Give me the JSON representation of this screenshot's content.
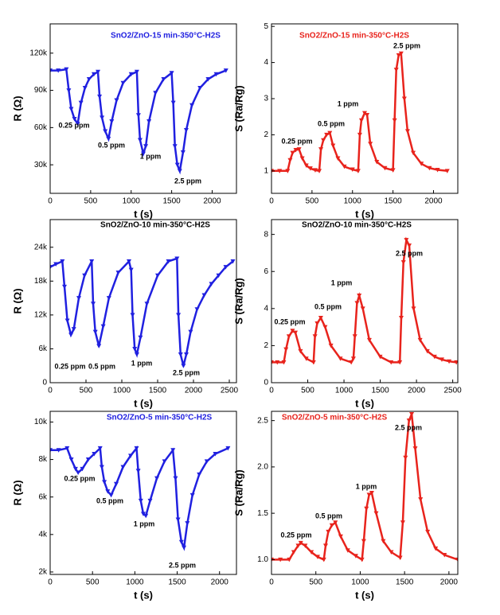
{
  "chart_data": [
    {
      "type": "line",
      "title": "SnO2/ZnO-15 min-350°C-H2S",
      "title_color": "#2020e0",
      "color": "#2020e0",
      "x_label": "t (s)",
      "y_label": "R (Ω)",
      "x": [
        0,
        100,
        200,
        230,
        260,
        300,
        340,
        380,
        430,
        480,
        540,
        590,
        610,
        640,
        680,
        720,
        760,
        820,
        900,
        1000,
        1070,
        1090,
        1110,
        1150,
        1180,
        1220,
        1300,
        1400,
        1500,
        1520,
        1540,
        1570,
        1600,
        1640,
        1680,
        1750,
        1850,
        1950,
        2050,
        2170
      ],
      "values": [
        106000,
        106000,
        107000,
        90000,
        75000,
        67000,
        63000,
        80000,
        92000,
        99000,
        103000,
        105000,
        85000,
        68000,
        57000,
        51000,
        65000,
        82000,
        96000,
        103000,
        105000,
        70000,
        50000,
        39000,
        45000,
        65000,
        88000,
        99000,
        104000,
        80000,
        45000,
        30000,
        25000,
        40000,
        58000,
        78000,
        92000,
        99000,
        103000,
        106000
      ],
      "xlim": [
        0,
        2300
      ],
      "xticks": [
        0,
        500,
        1000,
        1500,
        2000
      ],
      "ylim": [
        7000,
        143600
      ],
      "yticks": [
        {
          "value": 30000,
          "label": "30k"
        },
        {
          "value": 60000,
          "label": "60k"
        },
        {
          "value": 90000,
          "label": "90k"
        },
        {
          "value": 120000,
          "label": "120k"
        }
      ],
      "annotations": [
        "0.25 ppm",
        "0.5 ppm",
        "1 ppm",
        "2.5 ppm"
      ]
    },
    {
      "type": "line",
      "title": "SnO2/ZnO-15 min-350°C-H2S",
      "title_color": "#e8231c",
      "color": "#e8231c",
      "x_label": "t (s)",
      "y_label": "S (Ra/Rg)",
      "x": [
        0,
        100,
        200,
        230,
        260,
        300,
        340,
        380,
        430,
        480,
        540,
        590,
        610,
        640,
        680,
        720,
        760,
        820,
        900,
        1000,
        1070,
        1090,
        1110,
        1150,
        1180,
        1220,
        1300,
        1400,
        1500,
        1520,
        1540,
        1570,
        1600,
        1640,
        1680,
        1750,
        1850,
        1950,
        2050,
        2170
      ],
      "values": [
        1,
        1,
        1,
        1.3,
        1.5,
        1.58,
        1.6,
        1.35,
        1.15,
        1.07,
        1.02,
        1,
        1.6,
        1.85,
        2,
        2.05,
        1.7,
        1.35,
        1.12,
        1.04,
        1,
        2,
        2.4,
        2.6,
        2.55,
        1.75,
        1.25,
        1.08,
        1.02,
        2.4,
        3.8,
        4.2,
        4.25,
        3,
        2.1,
        1.5,
        1.2,
        1.08,
        1.03,
        1
      ],
      "xlim": [
        0,
        2300
      ],
      "xticks": [
        0,
        500,
        1000,
        1500,
        2000
      ],
      "ylim": [
        0.38,
        5.07
      ],
      "yticks": [
        1,
        2,
        3,
        4,
        5
      ],
      "annotations": [
        "0.25 ppm",
        "0.5 ppm",
        "1 ppm",
        "2.5 ppm"
      ]
    },
    {
      "type": "line",
      "title": "SnO2/ZnO-10 min-350°C-H2S",
      "title_color": "#000000",
      "color": "#2020e0",
      "x_label": "t (s)",
      "y_label": "R (Ω)",
      "x": [
        0,
        80,
        170,
        200,
        240,
        290,
        330,
        400,
        480,
        580,
        600,
        630,
        680,
        740,
        820,
        950,
        1100,
        1130,
        1150,
        1180,
        1210,
        1260,
        1350,
        1500,
        1650,
        1770,
        1790,
        1820,
        1860,
        1900,
        1960,
        2050,
        2150,
        2250,
        2350,
        2450,
        2550
      ],
      "values": [
        20500,
        21000,
        21500,
        17000,
        11000,
        8500,
        9500,
        15000,
        19000,
        21500,
        14000,
        9000,
        6500,
        10000,
        15000,
        19500,
        21500,
        20000,
        12000,
        6000,
        5000,
        8000,
        14000,
        19000,
        21500,
        22000,
        12000,
        5000,
        3000,
        5000,
        9000,
        13000,
        15500,
        17500,
        19000,
        20500,
        21500
      ],
      "xlim": [
        0,
        2600
      ],
      "xticks": [
        0,
        500,
        1000,
        1500,
        2000,
        2500
      ],
      "ylim": [
        0,
        28900
      ],
      "yticks": [
        0,
        {
          "value": 6000,
          "label": "6k"
        },
        {
          "value": 12000,
          "label": "12k"
        },
        {
          "value": 18000,
          "label": "18k"
        },
        {
          "value": 24000,
          "label": "24k"
        }
      ],
      "annotations": [
        "0.25 ppm",
        "0.5 ppm",
        "1 ppm",
        "2.5 ppm"
      ]
    },
    {
      "type": "line",
      "title": "SnO2/ZnO-10 min-350°C-H2S",
      "title_color": "#000000",
      "color": "#e8231c",
      "x_label": "t (s)",
      "y_label": "S (Ra/Rg)",
      "x": [
        0,
        80,
        170,
        200,
        240,
        290,
        330,
        400,
        480,
        580,
        600,
        630,
        680,
        740,
        820,
        950,
        1100,
        1130,
        1150,
        1180,
        1210,
        1260,
        1350,
        1500,
        1650,
        1770,
        1790,
        1820,
        1860,
        1900,
        1960,
        2050,
        2150,
        2250,
        2350,
        2450,
        2550
      ],
      "values": [
        1.1,
        1.1,
        1.1,
        1.8,
        2.5,
        2.8,
        2.7,
        1.7,
        1.3,
        1.1,
        2.5,
        3.2,
        3.5,
        3,
        2,
        1.3,
        1.1,
        1.3,
        2.5,
        4.3,
        4.7,
        4,
        2.3,
        1.4,
        1.1,
        1.1,
        3.5,
        6.5,
        7.7,
        7.4,
        4,
        2.3,
        1.7,
        1.4,
        1.25,
        1.15,
        1.1
      ],
      "xlim": [
        0,
        2570
      ],
      "xticks": [
        0,
        500,
        1000,
        1500,
        2000,
        2500
      ],
      "ylim": [
        0,
        8.8
      ],
      "yticks": [
        0,
        2,
        4,
        6,
        8
      ],
      "annotations": [
        "0.25 ppm",
        "0.5 ppm",
        "1 ppm",
        "2.5 ppm"
      ]
    },
    {
      "type": "line",
      "title": "SnO2/ZnO-5 min-350°C-H2S",
      "title_color": "#2020e0",
      "color": "#2020e0",
      "x_label": "t (s)",
      "y_label": "R (Ω)",
      "x": [
        0,
        100,
        200,
        250,
        300,
        330,
        380,
        450,
        520,
        590,
        610,
        640,
        680,
        720,
        780,
        860,
        950,
        1020,
        1040,
        1070,
        1100,
        1130,
        1180,
        1260,
        1350,
        1450,
        1480,
        1510,
        1550,
        1580,
        1620,
        1680,
        1760,
        1850,
        1950,
        2100
      ],
      "values": [
        8500,
        8500,
        8600,
        8000,
        7500,
        7300,
        7500,
        8000,
        8300,
        8600,
        7600,
        6800,
        6300,
        6100,
        6700,
        7600,
        8200,
        8600,
        7400,
        5800,
        5100,
        5000,
        5800,
        7000,
        7900,
        8500,
        7000,
        4800,
        3600,
        3300,
        4600,
        6100,
        7200,
        7900,
        8300,
        8600
      ],
      "xlim": [
        0,
        2200
      ],
      "xticks": [
        0,
        500,
        1000,
        1500,
        2000
      ],
      "ylim": [
        1870,
        10570
      ],
      "yticks": [
        {
          "value": 2000,
          "label": "2k"
        },
        {
          "value": 4000,
          "label": "4k"
        },
        {
          "value": 6000,
          "label": "6k"
        },
        {
          "value": 8000,
          "label": "8k"
        },
        {
          "value": 10000,
          "label": "10k"
        }
      ],
      "annotations": [
        "0.25 ppm",
        "0.5 ppm",
        "1 ppm",
        "2.5 ppm"
      ]
    },
    {
      "type": "line",
      "title": "SnO2/ZnO-5 min-350°C-H2S",
      "title_color": "#e8231c",
      "color": "#e8231c",
      "x_label": "t (s)",
      "y_label": "S (Ra/Rg)",
      "x": [
        0,
        100,
        200,
        250,
        300,
        330,
        380,
        450,
        520,
        590,
        610,
        640,
        680,
        720,
        780,
        860,
        950,
        1020,
        1040,
        1070,
        1100,
        1130,
        1180,
        1260,
        1350,
        1450,
        1480,
        1510,
        1550,
        1580,
        1620,
        1680,
        1760,
        1850,
        1950,
        2100
      ],
      "values": [
        1,
        1,
        1,
        1.08,
        1.15,
        1.18,
        1.15,
        1.08,
        1.03,
        1,
        1.15,
        1.3,
        1.37,
        1.4,
        1.25,
        1.1,
        1.04,
        1,
        1.2,
        1.55,
        1.7,
        1.72,
        1.5,
        1.2,
        1.08,
        1.02,
        1.4,
        2.1,
        2.5,
        2.57,
        2.2,
        1.65,
        1.3,
        1.12,
        1.05,
        1
      ],
      "xlim": [
        0,
        2100
      ],
      "xticks": [
        0,
        500,
        1000,
        1500,
        2000
      ],
      "ylim": [
        0.84,
        2.6
      ],
      "yticks": [
        {
          "value": 1,
          "label": "1.0"
        },
        1.5,
        {
          "value": 2,
          "label": "2.0"
        },
        2.5
      ],
      "annotations": [
        "0.25 ppm",
        "0.5 ppm",
        "1 ppm",
        "2.5 ppm"
      ]
    }
  ]
}
